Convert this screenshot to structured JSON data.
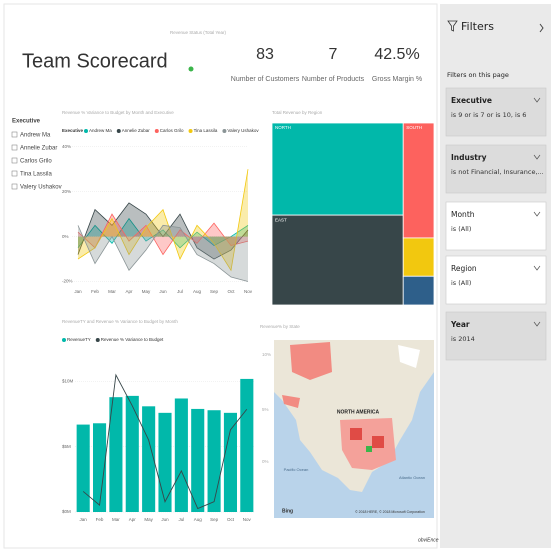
{
  "header": {
    "title": "Team Scorecard"
  },
  "revenue_status": {
    "title": "Revenue Status (Total Year)"
  },
  "kpis": [
    {
      "value": "83",
      "label": "Number of Customers"
    },
    {
      "value": "7",
      "label": "Number of Products"
    },
    {
      "value": "42.5%",
      "label": "Gross Margin %"
    }
  ],
  "slicer": {
    "title": "Executive",
    "items": [
      "Andrew Ma",
      "Annelie Zubar",
      "Carlos Grilo",
      "Tina Lassila",
      "Valery Ushakov"
    ]
  },
  "chart_data": [
    {
      "type": "line",
      "title": "Revenue % Variance to Budget by Month and Executive",
      "legend_title": "Executive",
      "categories": [
        "Jan",
        "Feb",
        "Mar",
        "Apr",
        "May",
        "Jun",
        "Jul",
        "Aug",
        "Sep",
        "Oct",
        "Nov"
      ],
      "series": [
        {
          "name": "Andrew Ma",
          "color": "#01b8aa",
          "values": [
            -5,
            5,
            -3,
            8,
            -2,
            3,
            -5,
            2,
            -4,
            0,
            5
          ]
        },
        {
          "name": "Annelie Zubar",
          "color": "#374649",
          "values": [
            -8,
            12,
            5,
            15,
            10,
            0,
            10,
            -5,
            -10,
            -6,
            3
          ]
        },
        {
          "name": "Carlos Grilo",
          "color": "#fd625e",
          "values": [
            2,
            -5,
            10,
            -2,
            5,
            -8,
            3,
            -3,
            6,
            -4,
            -2
          ]
        },
        {
          "name": "Tina Lassila",
          "color": "#f2c80f",
          "values": [
            -10,
            -5,
            8,
            -8,
            4,
            12,
            -10,
            5,
            -3,
            -15,
            30
          ]
        },
        {
          "name": "Valery Ushakov",
          "color": "#8a9496",
          "values": [
            5,
            -12,
            0,
            -15,
            -6,
            5,
            4,
            -8,
            -12,
            -18,
            -20
          ]
        }
      ],
      "ylim": [
        -22,
        43
      ],
      "yticks": [
        {
          "value": 40,
          "label": "40%"
        },
        {
          "value": 20,
          "label": "20%"
        },
        {
          "value": 0,
          "label": "0%"
        },
        {
          "value": -20,
          "label": "-20%"
        }
      ]
    },
    {
      "type": "treemap",
      "title": "Total Revenue by Region",
      "categories": [
        "NORTH",
        "EAST",
        "SOUTH",
        null,
        null
      ],
      "values": [
        41,
        40,
        12,
        4,
        3
      ],
      "colors": [
        "#01b8aa",
        "#374649",
        "#fd625e",
        "#f2c80f",
        "#2e5f8a"
      ]
    },
    {
      "type": "combo",
      "title": "RevenueTY and Revenue % Variance to Budget by Month",
      "categories": [
        "Jan",
        "Feb",
        "Mar",
        "Apr",
        "May",
        "Jun",
        "Jul",
        "Aug",
        "Sep",
        "Oct",
        "Nov"
      ],
      "series": [
        {
          "name": "RevenueTY",
          "color": "#01b8aa",
          "values": [
            6700000,
            6800000,
            8800000,
            8900000,
            8100000,
            7600000,
            8700000,
            7900000,
            7800000,
            7600000,
            10200000
          ]
        },
        {
          "name": "Revenue % Variance to Budget",
          "color": "#374649",
          "axis": "y2",
          "values": [
            -14,
            -18,
            20,
            11,
            1,
            -17,
            -8,
            -19,
            -17,
            4,
            10
          ]
        }
      ],
      "ylim": [
        0,
        10500000
      ],
      "yticks": [
        {
          "value": 10000000,
          "label": "$10M"
        },
        {
          "value": 5000000,
          "label": "$5M"
        },
        {
          "value": 0,
          "label": "$0M"
        }
      ],
      "y2lim": [
        -20,
        20
      ]
    }
  ],
  "map": {
    "title": "Revenue% by State",
    "axis_labels": [
      "10%",
      "5%",
      "0%"
    ],
    "continent": "NORTH AMERICA",
    "pacific": "Pacific Ocean",
    "atlantic": "Atlantic Ocean",
    "provider": "Bing",
    "copyright": "© 2018 HERE, © 2018 Microsoft Corporation"
  },
  "filters": {
    "title": "Filters",
    "section": "Filters on this page",
    "cards": [
      {
        "title": "Executive",
        "value": "is 9 or is 7 or is 10, is 6"
      },
      {
        "title": "Industry",
        "value": "is not Financial, Insurance,..."
      },
      {
        "title": "Month",
        "value": "is (All)"
      },
      {
        "title": "Region",
        "value": "is (All)"
      },
      {
        "title": "Year",
        "value": "is 2014"
      }
    ]
  },
  "footer": {
    "credit": "obviEnce ©"
  }
}
